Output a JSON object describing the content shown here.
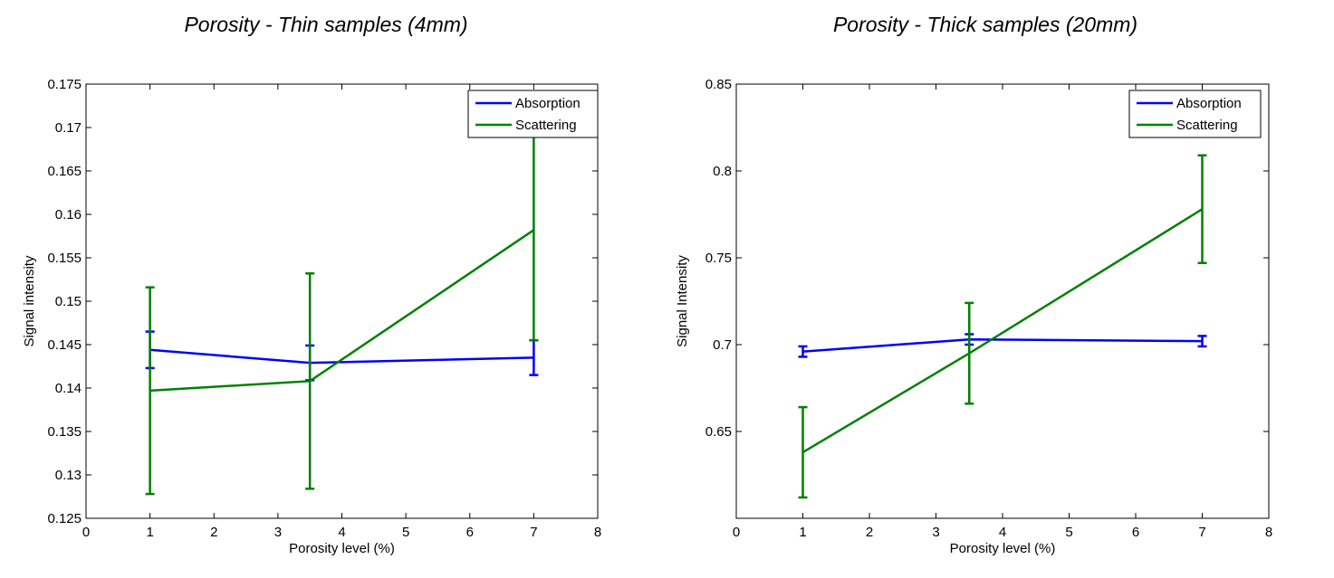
{
  "chart_data": [
    {
      "type": "line",
      "title": "Porosity - Thin samples (4mm)",
      "xlabel": "Porosity level (%)",
      "ylabel": "Signal intensity",
      "xlim": [
        0,
        8
      ],
      "ylim": [
        0.125,
        0.175
      ],
      "xticks": [
        0,
        1,
        2,
        3,
        4,
        5,
        6,
        7,
        8
      ],
      "xtick_labels": [
        "0",
        "1",
        "2",
        "3",
        "4",
        "5",
        "6",
        "7",
        "8"
      ],
      "yticks": [
        0.125,
        0.13,
        0.135,
        0.14,
        0.145,
        0.15,
        0.155,
        0.16,
        0.165,
        0.17,
        0.175
      ],
      "ytick_labels": [
        "0.125",
        "0.13",
        "0.135",
        "0.14",
        "0.145",
        "0.15",
        "0.155",
        "0.16",
        "0.165",
        "0.17",
        "0.175"
      ],
      "grid": false,
      "legend_position": "top-right",
      "series": [
        {
          "name": "Absorption",
          "color": "#0000ff",
          "x": [
            1,
            3.5,
            7
          ],
          "y": [
            0.1444,
            0.1429,
            0.1435
          ],
          "err": [
            0.0021,
            0.002,
            0.002
          ]
        },
        {
          "name": "Scattering",
          "color": "#008000",
          "x": [
            1,
            3.5,
            7
          ],
          "y": [
            0.1397,
            0.1408,
            0.1582
          ],
          "err": [
            0.0119,
            0.0124,
            0.0127
          ]
        }
      ]
    },
    {
      "type": "line",
      "title": "Porosity - Thick samples (20mm)",
      "xlabel": "Porosity level (%)",
      "ylabel": "Signal Intensity",
      "xlim": [
        0,
        8
      ],
      "ylim": [
        0.6,
        0.85
      ],
      "xticks": [
        0,
        1,
        2,
        3,
        4,
        5,
        6,
        7,
        8
      ],
      "xtick_labels": [
        "0",
        "1",
        "2",
        "3",
        "4",
        "5",
        "6",
        "7",
        "8"
      ],
      "yticks": [
        0.65,
        0.7,
        0.75,
        0.8,
        0.85
      ],
      "ytick_labels": [
        "0.65",
        "0.7",
        "0.75",
        "0.8",
        "0.85"
      ],
      "grid": false,
      "legend_position": "top-right",
      "series": [
        {
          "name": "Absorption",
          "color": "#0000ff",
          "x": [
            1,
            3.5,
            7
          ],
          "y": [
            0.696,
            0.703,
            0.702
          ],
          "err": [
            0.003,
            0.003,
            0.003
          ]
        },
        {
          "name": "Scattering",
          "color": "#008000",
          "x": [
            1,
            3.5,
            7
          ],
          "y": [
            0.638,
            0.695,
            0.778
          ],
          "err": [
            0.026,
            0.029,
            0.031
          ]
        }
      ]
    }
  ]
}
